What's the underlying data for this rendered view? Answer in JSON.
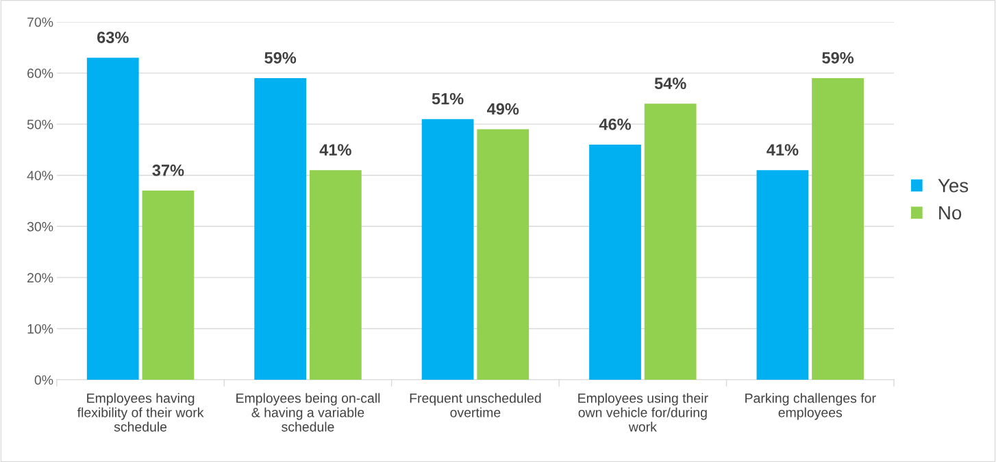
{
  "chart_data": {
    "type": "bar",
    "categories": [
      "Employees having\nflexibility of their work\nschedule",
      "Employees being on-call\n& having a variable\nschedule",
      "Frequent unscheduled\novertime",
      "Employees using their\nown vehicle for/during\nwork",
      "Parking challenges for\nemployees"
    ],
    "series": [
      {
        "name": "Yes",
        "color": "#00b0f0",
        "values": [
          63,
          59,
          51,
          46,
          41
        ],
        "value_labels": [
          "63%",
          "59%",
          "51%",
          "46%",
          "41%"
        ]
      },
      {
        "name": "No",
        "color": "#92d050",
        "values": [
          37,
          41,
          49,
          54,
          59
        ],
        "value_labels": [
          "37%",
          "41%",
          "49%",
          "54%",
          "59%"
        ]
      }
    ],
    "ylim": [
      0,
      70
    ],
    "yticks": [
      {
        "value": 0,
        "label": "0%"
      },
      {
        "value": 10,
        "label": "10%"
      },
      {
        "value": 20,
        "label": "20%"
      },
      {
        "value": 30,
        "label": "30%"
      },
      {
        "value": 40,
        "label": "40%"
      },
      {
        "value": 50,
        "label": "50%"
      },
      {
        "value": 60,
        "label": "60%"
      },
      {
        "value": 70,
        "label": "70%"
      }
    ],
    "grid": "y",
    "legend": "right"
  }
}
